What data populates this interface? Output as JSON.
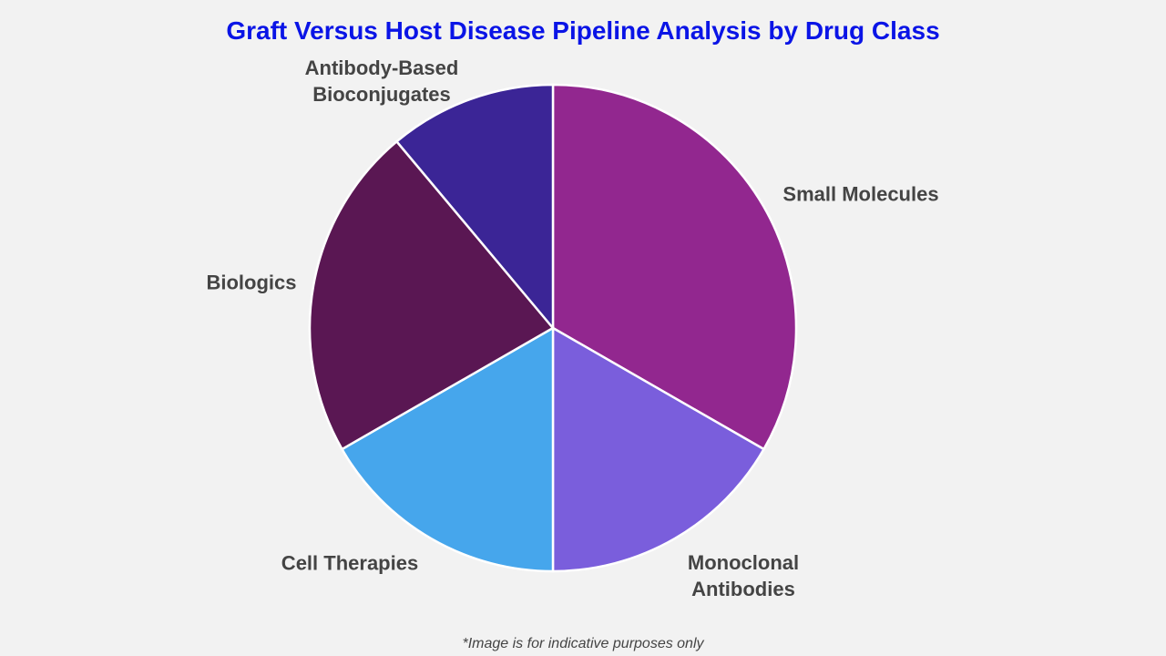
{
  "chart_data": {
    "type": "pie",
    "title": "Graft Versus Host Disease Pipeline Analysis by Drug Class",
    "slices": [
      {
        "label": "Small Molecules",
        "value": 33.3,
        "color": "#92278f"
      },
      {
        "label": "Monoclonal Antibodies",
        "value": 16.7,
        "color": "#7a5edc"
      },
      {
        "label": "Cell Therapies",
        "value": 16.7,
        "color": "#46a6ec"
      },
      {
        "label": "Biologics",
        "value": 22.2,
        "color": "#5a1753"
      },
      {
        "label": "Antibody-Based Bioconjugates",
        "value": 11.1,
        "color": "#3b2596"
      }
    ],
    "start_angle_deg": 0,
    "direction": "clockwise",
    "legend": "none"
  },
  "footnote": "*Image is for indicative purposes only"
}
